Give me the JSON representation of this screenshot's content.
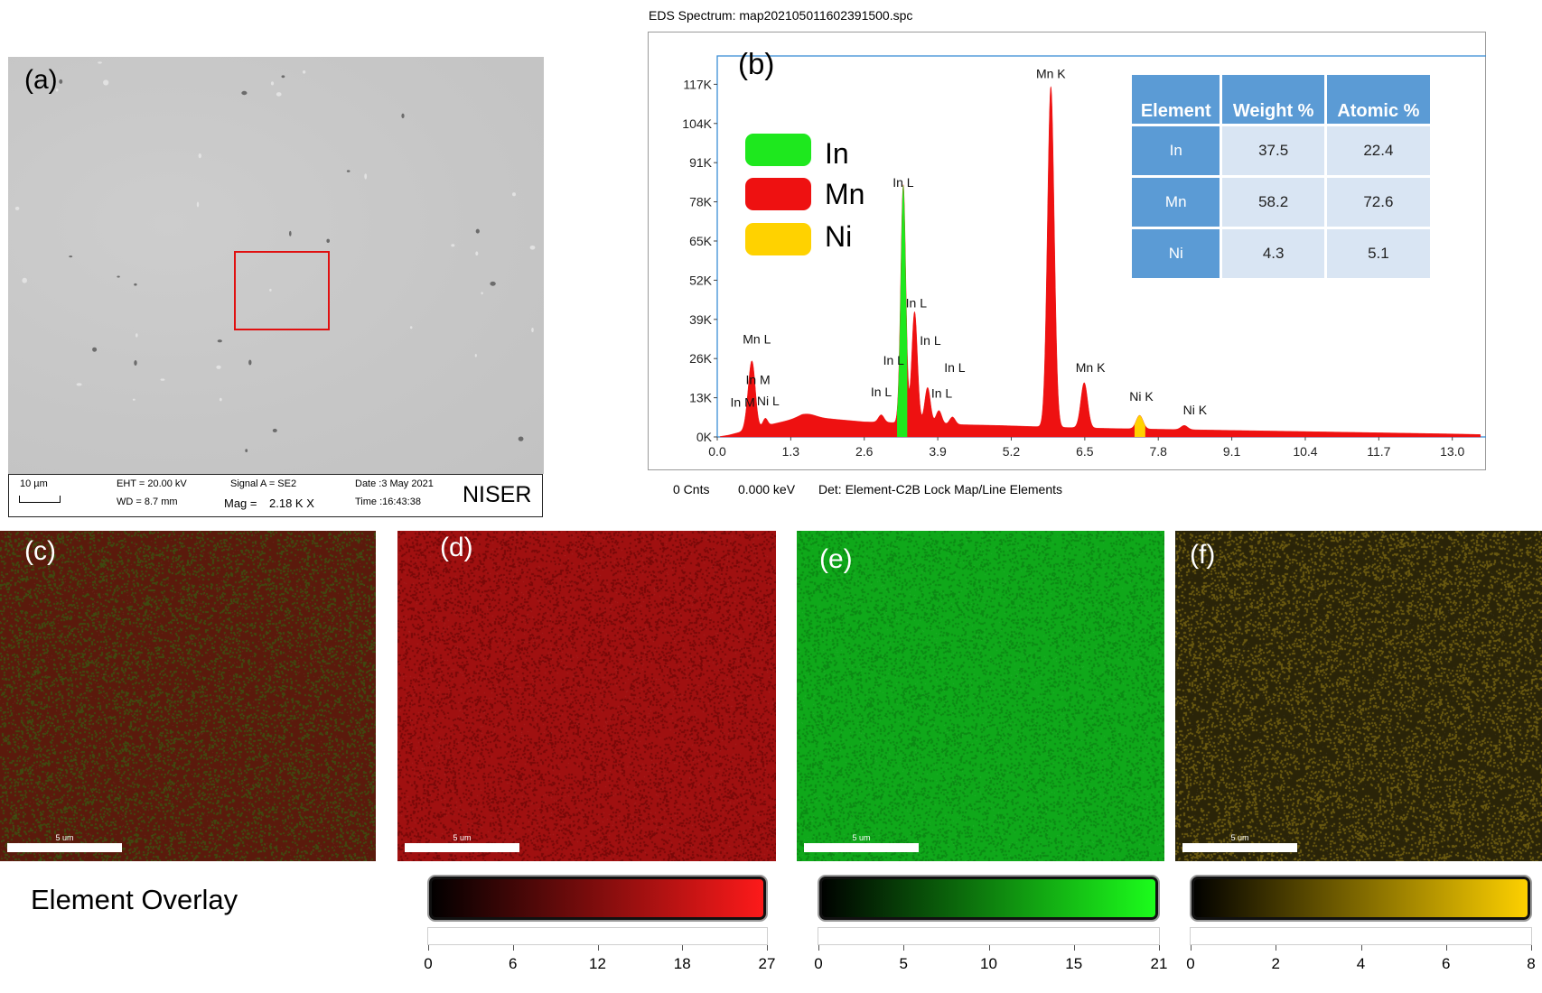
{
  "panels": {
    "a": "(a)",
    "b": "(b)",
    "c": "(c)",
    "d": "(d)",
    "e": "(e)",
    "f": "(f)"
  },
  "sem": {
    "scale_label": "10 µm",
    "eht": "EHT = 20.00 kV",
    "wd": "WD =  8.7 mm",
    "signal": "Signal A = SE2",
    "mag_label": "Mag =",
    "mag_value": "2.18 K X",
    "date": "Date :3 May 2021",
    "time": "Time :16:43:38",
    "institute": "NISER",
    "selection_color": "#e01010"
  },
  "spectrum_title": "EDS Spectrum: map202105011602391500.spc",
  "spectrum_footer": {
    "counts": "0 Cnts",
    "kev": "0.000 keV",
    "det": "Det: Element-C2B Lock Map/Line Elements"
  },
  "legend": [
    {
      "name": "In",
      "color": "#1ee81e"
    },
    {
      "name": "Mn",
      "color": "#ee1111"
    },
    {
      "name": "Ni",
      "color": "#ffd200"
    }
  ],
  "table": {
    "headers": [
      "Element",
      "Weight %",
      "Atomic %"
    ],
    "rows": [
      [
        "In",
        "37.5",
        "22.4"
      ],
      [
        "Mn",
        "58.2",
        "72.6"
      ],
      [
        "Ni",
        "4.3",
        "5.1"
      ]
    ]
  },
  "chart_data": {
    "type": "area",
    "xlim": [
      0,
      13.5
    ],
    "ylim": [
      0,
      124000
    ],
    "x_ticks": [
      "0.0",
      "1.3",
      "2.6",
      "3.9",
      "5.2",
      "6.5",
      "7.8",
      "9.1",
      "10.4",
      "11.7",
      "13.0"
    ],
    "y_ticks": [
      "0K",
      "13K",
      "26K",
      "39K",
      "52K",
      "65K",
      "78K",
      "91K",
      "104K",
      "117K"
    ],
    "baseline": {
      "x": [
        0.0,
        0.2,
        0.8,
        1.5,
        2.0,
        2.6,
        3.0,
        3.6,
        4.0,
        5.0,
        6.0,
        7.0,
        8.0,
        9.0,
        10.0,
        11.0,
        12.0,
        13.0,
        13.5
      ],
      "y": [
        0,
        600,
        3500,
        6500,
        6000,
        5000,
        4800,
        4500,
        4200,
        3800,
        3200,
        2800,
        2500,
        2200,
        1900,
        1600,
        1300,
        1000,
        800
      ]
    },
    "peaks": [
      {
        "element": "Mn",
        "center": 0.59,
        "height": 16000,
        "width": 0.06
      },
      {
        "element": "Mn",
        "center": 0.64,
        "height": 9000,
        "width": 0.05
      },
      {
        "element": "Ni",
        "center": 0.85,
        "height": 2500,
        "width": 0.04
      },
      {
        "element": "Mn",
        "center": 1.6,
        "height": 1200,
        "width": 0.15
      },
      {
        "element": "In",
        "center": 2.9,
        "height": 2500,
        "width": 0.05
      },
      {
        "element": "In",
        "center": 3.29,
        "height": 79000,
        "width": 0.045
      },
      {
        "element": "In",
        "center": 3.49,
        "height": 37000,
        "width": 0.05
      },
      {
        "element": "In",
        "center": 3.72,
        "height": 12000,
        "width": 0.05
      },
      {
        "element": "In",
        "center": 3.92,
        "height": 4500,
        "width": 0.05
      },
      {
        "element": "In",
        "center": 4.16,
        "height": 2500,
        "width": 0.05
      },
      {
        "element": "Mn",
        "center": 5.9,
        "height": 113000,
        "width": 0.06
      },
      {
        "element": "Mn",
        "center": 6.49,
        "height": 15000,
        "width": 0.06
      },
      {
        "element": "Ni",
        "center": 7.47,
        "height": 4500,
        "width": 0.06
      },
      {
        "element": "Ni",
        "center": 8.26,
        "height": 1400,
        "width": 0.06
      }
    ],
    "highlights": [
      {
        "element": "In",
        "range": [
          3.18,
          3.36
        ],
        "color": "#1ee81e"
      },
      {
        "element": "Ni",
        "range": [
          7.38,
          7.57
        ],
        "color": "#ffd200"
      }
    ],
    "annotations": [
      {
        "text": "Mn K",
        "x": 5.9,
        "y": 119000
      },
      {
        "text": "In L",
        "x": 3.29,
        "y": 83000
      },
      {
        "text": "In L",
        "x": 3.52,
        "y": 43000
      },
      {
        "text": "In L",
        "x": 3.77,
        "y": 30500
      },
      {
        "text": "In L",
        "x": 4.2,
        "y": 21500
      },
      {
        "text": "In L",
        "x": 3.97,
        "y": 13000
      },
      {
        "text": "In L",
        "x": 3.12,
        "y": 24000
      },
      {
        "text": "In L",
        "x": 2.9,
        "y": 13500
      },
      {
        "text": "Mn L",
        "x": 0.7,
        "y": 31000
      },
      {
        "text": "In M",
        "x": 0.72,
        "y": 17500
      },
      {
        "text": "In M",
        "x": 0.45,
        "y": 10000
      },
      {
        "text": "Ni L",
        "x": 0.9,
        "y": 10500
      },
      {
        "text": "Mn K",
        "x": 6.6,
        "y": 21500
      },
      {
        "text": "Ni K",
        "x": 7.5,
        "y": 12000
      },
      {
        "text": "Ni K",
        "x": 8.45,
        "y": 7500
      }
    ],
    "fill_color": "#ee1111"
  },
  "maps": [
    {
      "id": "c",
      "scale": "5 um",
      "colors": [
        "#5a1a0c",
        "#3e4a10"
      ]
    },
    {
      "id": "d",
      "scale": "5 um",
      "colors": [
        "#a01010",
        "#7a0808"
      ]
    },
    {
      "id": "e",
      "scale": "5 um",
      "colors": [
        "#0fa81a",
        "#0b8a14"
      ]
    },
    {
      "id": "f",
      "scale": "5 um",
      "colors": [
        "#2a2408",
        "#6a5a10"
      ]
    }
  ],
  "overlay_label": "Element Overlay",
  "colorbars": [
    {
      "color": "#ff1a1a",
      "ticks": [
        "0",
        "6",
        "12",
        "18",
        "27"
      ]
    },
    {
      "color": "#1cff1c",
      "ticks": [
        "0",
        "5",
        "10",
        "15",
        "21"
      ]
    },
    {
      "color": "#ffd200",
      "ticks": [
        "0",
        "2",
        "4",
        "6",
        "8"
      ]
    }
  ]
}
